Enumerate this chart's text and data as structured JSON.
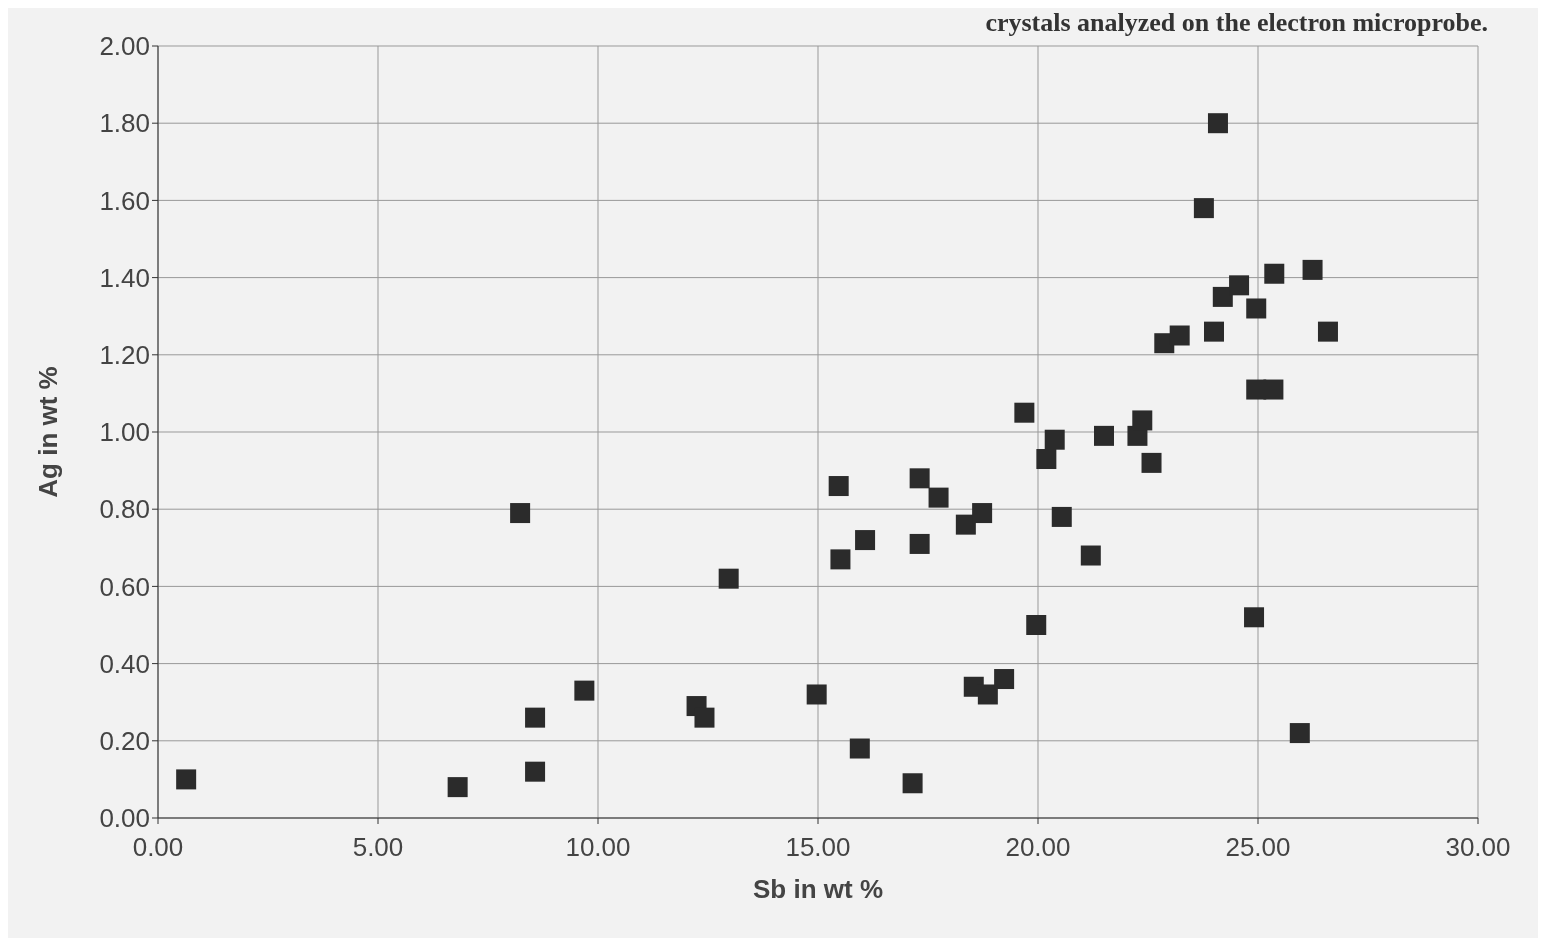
{
  "chart_data": {
    "type": "scatter",
    "title": "crystals analyzed on the electron microprobe.",
    "xlabel": "Sb in wt %",
    "ylabel": "Ag in wt %",
    "x": [
      0.64,
      6.81,
      8.23,
      8.57,
      8.57,
      9.69,
      12.24,
      12.42,
      12.97,
      14.97,
      15.47,
      15.51,
      16.07,
      15.95,
      17.15,
      17.31,
      17.31,
      17.74,
      18.36,
      18.73,
      18.54,
      18.86,
      19.23,
      19.69,
      19.96,
      20.19,
      20.38,
      20.54,
      21.2,
      21.5,
      22.26,
      22.37,
      22.58,
      22.87,
      23.22,
      23.77,
      24.0,
      24.09,
      24.2,
      24.57,
      24.96,
      24.96,
      25.35,
      24.91,
      25.37,
      25.95,
      26.24,
      26.59
    ],
    "values": [
      0.1,
      0.08,
      0.79,
      0.26,
      0.12,
      0.33,
      0.29,
      0.26,
      0.62,
      0.32,
      0.86,
      0.67,
      0.72,
      0.18,
      0.09,
      0.71,
      0.88,
      0.83,
      0.76,
      0.79,
      0.34,
      0.32,
      0.36,
      1.05,
      0.5,
      0.93,
      0.98,
      0.78,
      0.68,
      0.99,
      0.99,
      1.03,
      0.92,
      1.23,
      1.25,
      1.58,
      1.26,
      1.8,
      1.35,
      1.38,
      1.32,
      1.11,
      1.11,
      0.52,
      1.41,
      0.22,
      1.42,
      1.26
    ],
    "color": "#2b2b2b",
    "marker": "square",
    "grid": true,
    "xlim": [
      0,
      30
    ],
    "xticks": [
      {
        "value": 0,
        "label": "0.00"
      },
      {
        "value": 5,
        "label": "5.00"
      },
      {
        "value": 10,
        "label": "10.00"
      },
      {
        "value": 15,
        "label": "15.00"
      },
      {
        "value": 20,
        "label": "20.00"
      },
      {
        "value": 25,
        "label": "25.00"
      },
      {
        "value": 30,
        "label": "30.00"
      }
    ],
    "ylim": [
      0,
      2
    ],
    "yticks": [
      {
        "value": 0,
        "label": "0.00"
      },
      {
        "value": 0.2,
        "label": "0.20"
      },
      {
        "value": 0.4,
        "label": "0.40"
      },
      {
        "value": 0.6,
        "label": "0.60"
      },
      {
        "value": 0.8,
        "label": "0.80"
      },
      {
        "value": 1,
        "label": "1.00"
      },
      {
        "value": 1.2,
        "label": "1.20"
      },
      {
        "value": 1.4,
        "label": "1.40"
      },
      {
        "value": 1.6,
        "label": "1.60"
      },
      {
        "value": 1.8,
        "label": "1.80"
      },
      {
        "value": 2,
        "label": "2.00"
      }
    ]
  }
}
